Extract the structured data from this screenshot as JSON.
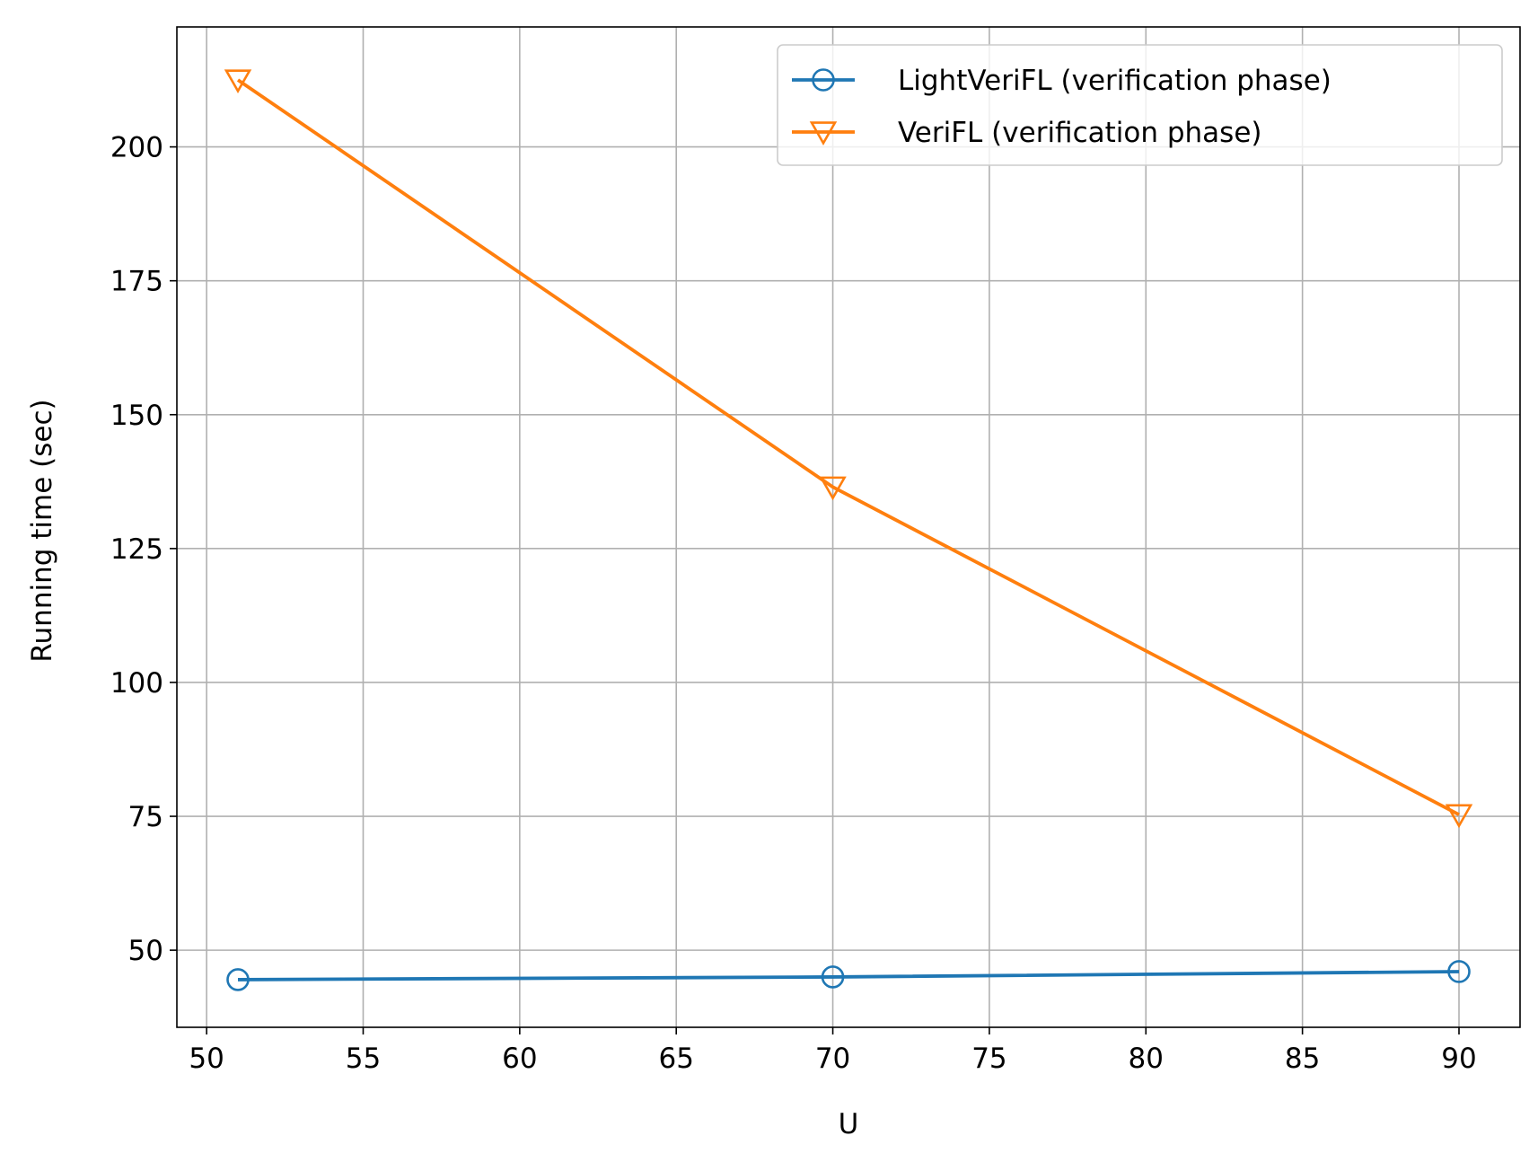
{
  "chart_data": {
    "type": "line",
    "title": "",
    "xlabel": "U",
    "ylabel": "Running time (sec)",
    "xlim": [
      49.05,
      91.95
    ],
    "ylim": [
      35.6,
      222.4
    ],
    "xticks": [
      50,
      55,
      60,
      65,
      70,
      75,
      80,
      85,
      90
    ],
    "yticks": [
      50,
      75,
      100,
      125,
      150,
      175,
      200
    ],
    "grid": true,
    "legend_position": "upper right",
    "series": [
      {
        "name": "LightVeriFL (verification phase)",
        "color": "#1f77b4",
        "marker": "circle",
        "x": [
          51,
          70,
          90
        ],
        "y": [
          44.5,
          45.0,
          46.0
        ]
      },
      {
        "name": "VeriFL (verification phase)",
        "color": "#ff7f0e",
        "marker": "triangle-down",
        "x": [
          51,
          70,
          90
        ],
        "y": [
          212.5,
          136.5,
          75.3
        ]
      }
    ]
  }
}
